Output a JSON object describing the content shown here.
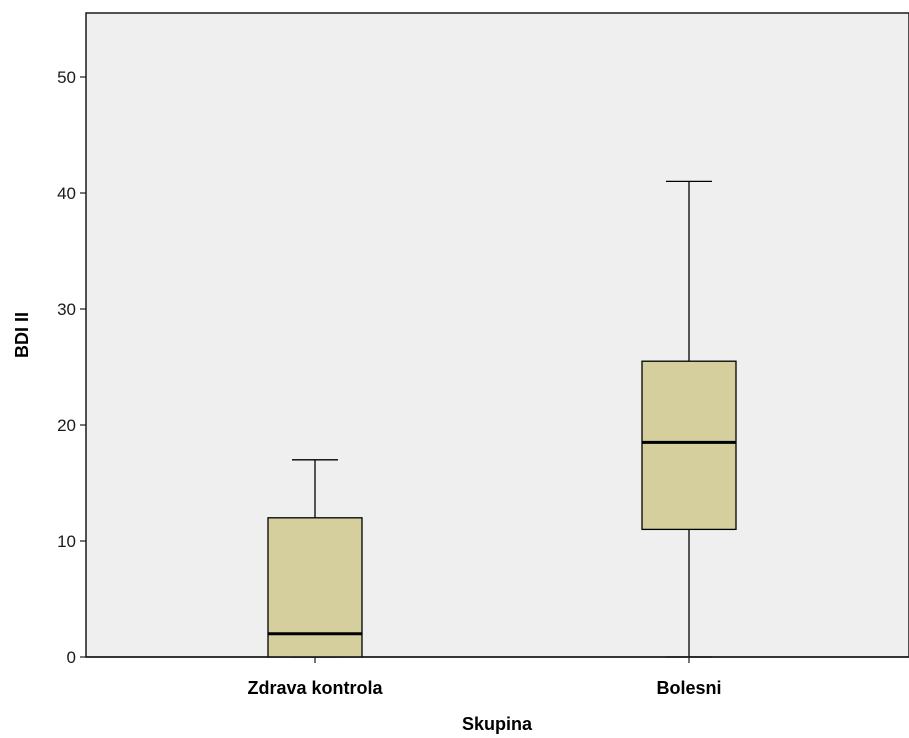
{
  "chart_data": {
    "type": "boxplot",
    "xlabel": "Skupina",
    "ylabel": "BDI II",
    "ylim": [
      0,
      55
    ],
    "yticks": [
      "0",
      "10",
      "20",
      "30",
      "40",
      "50"
    ],
    "grid": false,
    "categories": [
      "Zdrava kontrola",
      "Bolesni"
    ],
    "boxes": [
      {
        "category": "Zdrava kontrola",
        "min": 0,
        "q1": 0,
        "median": 2,
        "q3": 12,
        "max": 17
      },
      {
        "category": "Bolesni",
        "min": 0,
        "q1": 11,
        "median": 18.5,
        "q3": 25.5,
        "max": 41
      }
    ],
    "colors": {
      "plot_background": "#efefef",
      "box_fill": "#d4cf9c",
      "line": "#000000"
    }
  }
}
